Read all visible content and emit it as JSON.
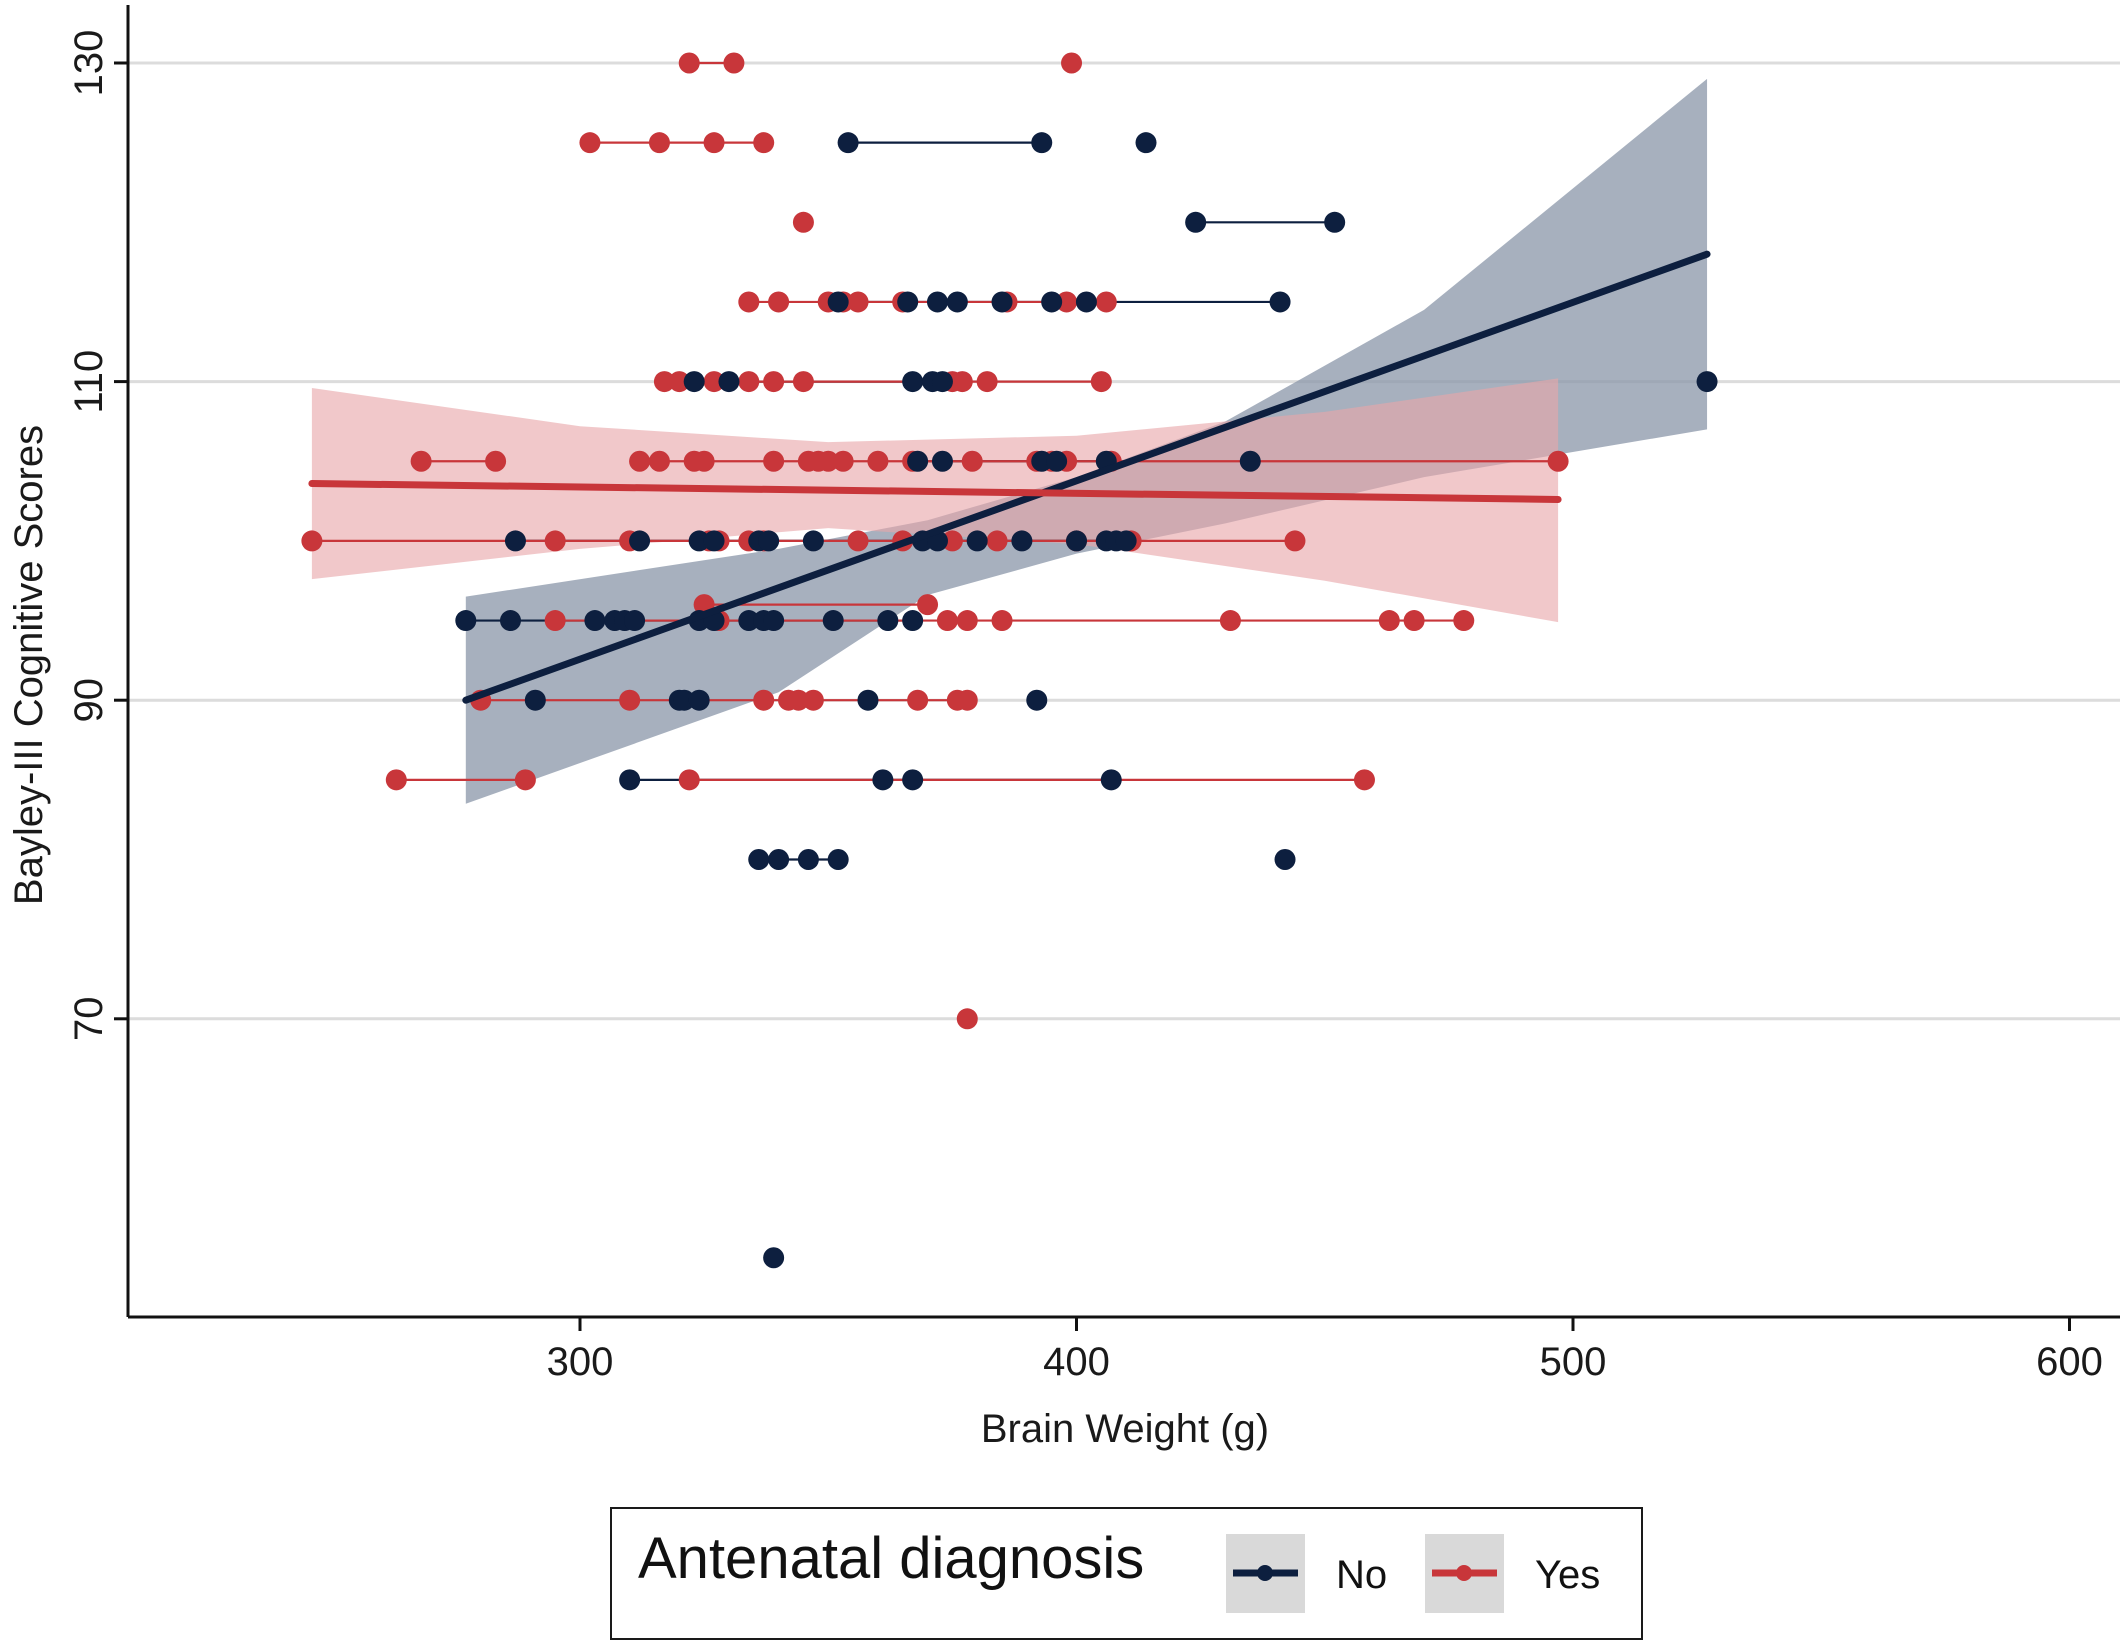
{
  "chart_data": {
    "type": "scatter",
    "title": "",
    "xlabel": "Brain Weight (g)",
    "ylabel": "Bayley-III Cognitive Scores",
    "xlim": [
      209,
      611
    ],
    "ylim": [
      52,
      133
    ],
    "x_ticks": [
      300,
      400,
      500,
      600
    ],
    "y_ticks": [
      70,
      90,
      110,
      130
    ],
    "x_tick_labels": [
      "300",
      "400",
      "500",
      "600"
    ],
    "y_tick_labels": [
      "70",
      "90",
      "110",
      "130"
    ],
    "grid": "horizontal",
    "legend": {
      "title": "Antenatal diagnosis",
      "position": "bottom",
      "entries": [
        "No",
        "Yes"
      ]
    },
    "series": [
      {
        "name": "No",
        "color": "#0d1f3f",
        "band_color": "#8e9aac",
        "points": [
          [
            354,
            125
          ],
          [
            393,
            125
          ],
          [
            414,
            125
          ],
          [
            424,
            120
          ],
          [
            452,
            120
          ],
          [
            352,
            115
          ],
          [
            366,
            115
          ],
          [
            372,
            115
          ],
          [
            376,
            115
          ],
          [
            385,
            115
          ],
          [
            395,
            115
          ],
          [
            402,
            115
          ],
          [
            441,
            115
          ],
          [
            323,
            110
          ],
          [
            330,
            110
          ],
          [
            367,
            110
          ],
          [
            371,
            110
          ],
          [
            373,
            110
          ],
          [
            527,
            110
          ],
          [
            368,
            105
          ],
          [
            373,
            105
          ],
          [
            393,
            105
          ],
          [
            396,
            105
          ],
          [
            406,
            105
          ],
          [
            435,
            105
          ],
          [
            287,
            100
          ],
          [
            312,
            100
          ],
          [
            324,
            100
          ],
          [
            327,
            100
          ],
          [
            336,
            100
          ],
          [
            338,
            100
          ],
          [
            347,
            100
          ],
          [
            369,
            100
          ],
          [
            372,
            100
          ],
          [
            380,
            100
          ],
          [
            389,
            100
          ],
          [
            400,
            100
          ],
          [
            406,
            100
          ],
          [
            408,
            100
          ],
          [
            410,
            100
          ],
          [
            277,
            95
          ],
          [
            286,
            95
          ],
          [
            303,
            95
          ],
          [
            307,
            95
          ],
          [
            309,
            95
          ],
          [
            311,
            95
          ],
          [
            324,
            95
          ],
          [
            327,
            95
          ],
          [
            334,
            95
          ],
          [
            337,
            95
          ],
          [
            339,
            95
          ],
          [
            351,
            95
          ],
          [
            362,
            95
          ],
          [
            367,
            95
          ],
          [
            291,
            90
          ],
          [
            320,
            90
          ],
          [
            321,
            90
          ],
          [
            324,
            90
          ],
          [
            358,
            90
          ],
          [
            392,
            90
          ],
          [
            310,
            85
          ],
          [
            361,
            85
          ],
          [
            367,
            85
          ],
          [
            407,
            85
          ],
          [
            336,
            80
          ],
          [
            340,
            80
          ],
          [
            346,
            80
          ],
          [
            352,
            80
          ],
          [
            442,
            80
          ],
          [
            339,
            55
          ]
        ],
        "lines": [
          [
            354,
            393,
            125
          ],
          [
            424,
            452,
            120
          ],
          [
            352,
            441,
            115
          ],
          [
            323,
            373,
            110
          ],
          [
            368,
            406,
            105
          ],
          [
            287,
            410,
            100
          ],
          [
            277,
            367,
            95
          ],
          [
            320,
            324,
            90
          ],
          [
            310,
            407,
            85
          ],
          [
            336,
            352,
            80
          ]
        ],
        "fit": {
          "x": [
            277,
            527
          ],
          "y": [
            90,
            118
          ]
        },
        "ci": {
          "x": [
            277,
            340,
            370,
            400,
            430,
            470,
            527
          ],
          "upper": [
            96.5,
            99.5,
            101.3,
            104,
            107.5,
            114.5,
            129
          ],
          "lower": [
            83.5,
            90.5,
            96.6,
            99.2,
            101.1,
            104,
            107
          ]
        }
      },
      {
        "name": "Yes",
        "color": "#c8363a",
        "band_color": "#e9a7aa",
        "points": [
          [
            322,
            130
          ],
          [
            331,
            130
          ],
          [
            399,
            130
          ],
          [
            302,
            125
          ],
          [
            316,
            125
          ],
          [
            327,
            125
          ],
          [
            337,
            125
          ],
          [
            345,
            120
          ],
          [
            334,
            115
          ],
          [
            340,
            115
          ],
          [
            350,
            115
          ],
          [
            353,
            115
          ],
          [
            356,
            115
          ],
          [
            365,
            115
          ],
          [
            386,
            115
          ],
          [
            398,
            115
          ],
          [
            406,
            115
          ],
          [
            317,
            110
          ],
          [
            320,
            110
          ],
          [
            327,
            110
          ],
          [
            334,
            110
          ],
          [
            339,
            110
          ],
          [
            345,
            110
          ],
          [
            375,
            110
          ],
          [
            377,
            110
          ],
          [
            382,
            110
          ],
          [
            405,
            110
          ],
          [
            268,
            105
          ],
          [
            283,
            105
          ],
          [
            312,
            105
          ],
          [
            316,
            105
          ],
          [
            323,
            105
          ],
          [
            325,
            105
          ],
          [
            339,
            105
          ],
          [
            346,
            105
          ],
          [
            348,
            105
          ],
          [
            350,
            105
          ],
          [
            353,
            105
          ],
          [
            360,
            105
          ],
          [
            367,
            105
          ],
          [
            379,
            105
          ],
          [
            392,
            105
          ],
          [
            395,
            105
          ],
          [
            398,
            105
          ],
          [
            407,
            105
          ],
          [
            497,
            105
          ],
          [
            246,
            100
          ],
          [
            295,
            100
          ],
          [
            310,
            100
          ],
          [
            326,
            100
          ],
          [
            328,
            100
          ],
          [
            334,
            100
          ],
          [
            337,
            100
          ],
          [
            356,
            100
          ],
          [
            365,
            100
          ],
          [
            375,
            100
          ],
          [
            384,
            100
          ],
          [
            400,
            100
          ],
          [
            411,
            100
          ],
          [
            444,
            100
          ],
          [
            325,
            96
          ],
          [
            370,
            96
          ],
          [
            295,
            95
          ],
          [
            328,
            95
          ],
          [
            374,
            95
          ],
          [
            378,
            95
          ],
          [
            385,
            95
          ],
          [
            431,
            95
          ],
          [
            463,
            95
          ],
          [
            468,
            95
          ],
          [
            478,
            95
          ],
          [
            280,
            90
          ],
          [
            310,
            90
          ],
          [
            337,
            90
          ],
          [
            342,
            90
          ],
          [
            344,
            90
          ],
          [
            347,
            90
          ],
          [
            368,
            90
          ],
          [
            376,
            90
          ],
          [
            378,
            90
          ],
          [
            263,
            85
          ],
          [
            289,
            85
          ],
          [
            322,
            85
          ],
          [
            458,
            85
          ],
          [
            378,
            70
          ]
        ],
        "lines": [
          [
            322,
            331,
            130
          ],
          [
            302,
            337,
            125
          ],
          [
            334,
            406,
            115
          ],
          [
            317,
            405,
            110
          ],
          [
            268,
            283,
            105
          ],
          [
            312,
            497,
            105
          ],
          [
            246,
            444,
            100
          ],
          [
            325,
            370,
            96
          ],
          [
            295,
            478,
            95
          ],
          [
            280,
            378,
            90
          ],
          [
            263,
            289,
            85
          ],
          [
            322,
            458,
            85
          ]
        ],
        "fit": {
          "x": [
            246,
            497
          ],
          "y": [
            103.6,
            102.6
          ]
        },
        "ci": {
          "x": [
            246,
            300,
            350,
            400,
            450,
            497
          ],
          "upper": [
            109.6,
            107.2,
            106.2,
            106.6,
            108.1,
            110.2
          ],
          "lower": [
            97.6,
            99.5,
            100.8,
            99.8,
            97.5,
            94.9
          ]
        }
      }
    ]
  }
}
